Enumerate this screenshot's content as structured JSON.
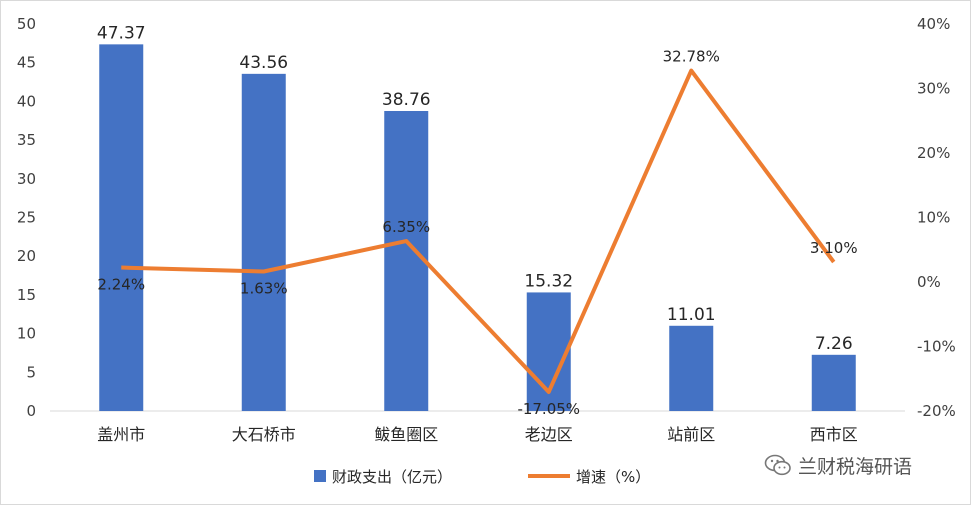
{
  "chart_data": {
    "type": "bar+line",
    "categories": [
      "盖州市",
      "大石桥市",
      "鲅鱼圈区",
      "老边区",
      "站前区",
      "西市区"
    ],
    "series": [
      {
        "name": "财政支出（亿元）",
        "type": "bar",
        "axis": "left",
        "color": "#4472C4",
        "values": [
          47.37,
          43.56,
          38.76,
          15.32,
          11.01,
          7.26
        ],
        "labels": [
          "47.37",
          "43.56",
          "38.76",
          "15.32",
          "11.01",
          "7.26"
        ]
      },
      {
        "name": "增速（%）",
        "type": "line",
        "axis": "right",
        "color": "#ED7D31",
        "values": [
          2.24,
          1.63,
          6.35,
          -17.05,
          32.78,
          3.1
        ],
        "labels": [
          "2.24%",
          "1.63%",
          "6.35%",
          "-17.05%",
          "32.78%",
          "3.10%"
        ]
      }
    ],
    "y_left": {
      "ylim": [
        0,
        50
      ],
      "ticks": [
        "0",
        "5",
        "10",
        "15",
        "20",
        "25",
        "30",
        "35",
        "40",
        "45",
        "50"
      ]
    },
    "y_right": {
      "ylim": [
        -20,
        40
      ],
      "ticks": [
        "-20%",
        "-10%",
        "0%",
        "10%",
        "20%",
        "30%",
        "40%"
      ]
    },
    "grid": false,
    "legend": "bottom"
  },
  "watermark": {
    "text": "兰财税海研语",
    "icon": "wechat-icon"
  }
}
